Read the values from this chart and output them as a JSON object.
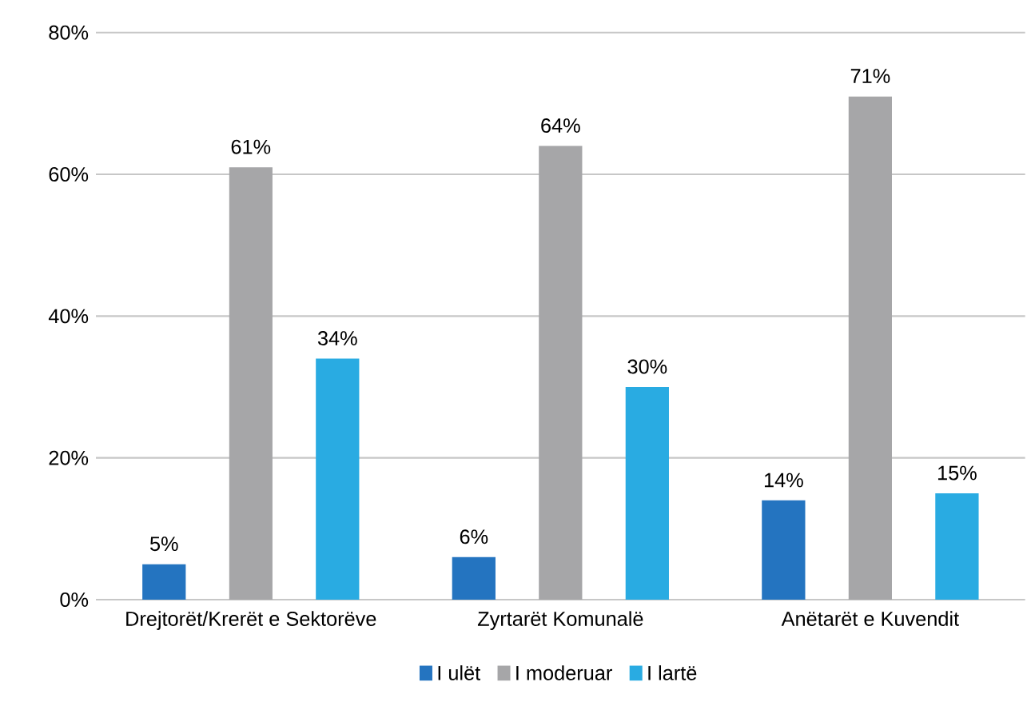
{
  "chart_data": {
    "type": "bar",
    "categories": [
      "Drejtorët/Krerët e Sektorëve",
      "Zyrtarët Komunalë",
      "Anëtarët e Kuvendit"
    ],
    "series": [
      {
        "name": "I ulët",
        "color": "#2474c0",
        "values": [
          5,
          6,
          14
        ],
        "value_labels": [
          "5%",
          "6%",
          "14%"
        ]
      },
      {
        "name": "I moderuar",
        "color": "#a6a6a8",
        "values": [
          61,
          64,
          71
        ],
        "value_labels": [
          "61%",
          "64%",
          "71%"
        ]
      },
      {
        "name": "I lartë",
        "color": "#29abe2",
        "values": [
          34,
          30,
          15
        ],
        "value_labels": [
          "34%",
          "30%",
          "15%"
        ]
      }
    ],
    "ylim": [
      0,
      80
    ],
    "yticks": [
      {
        "value": 0,
        "label": "0%"
      },
      {
        "value": 20,
        "label": "20%"
      },
      {
        "value": 40,
        "label": "40%"
      },
      {
        "value": 60,
        "label": "60%"
      },
      {
        "value": 80,
        "label": "80%"
      }
    ],
    "grid": "y",
    "legend": "bottom"
  }
}
